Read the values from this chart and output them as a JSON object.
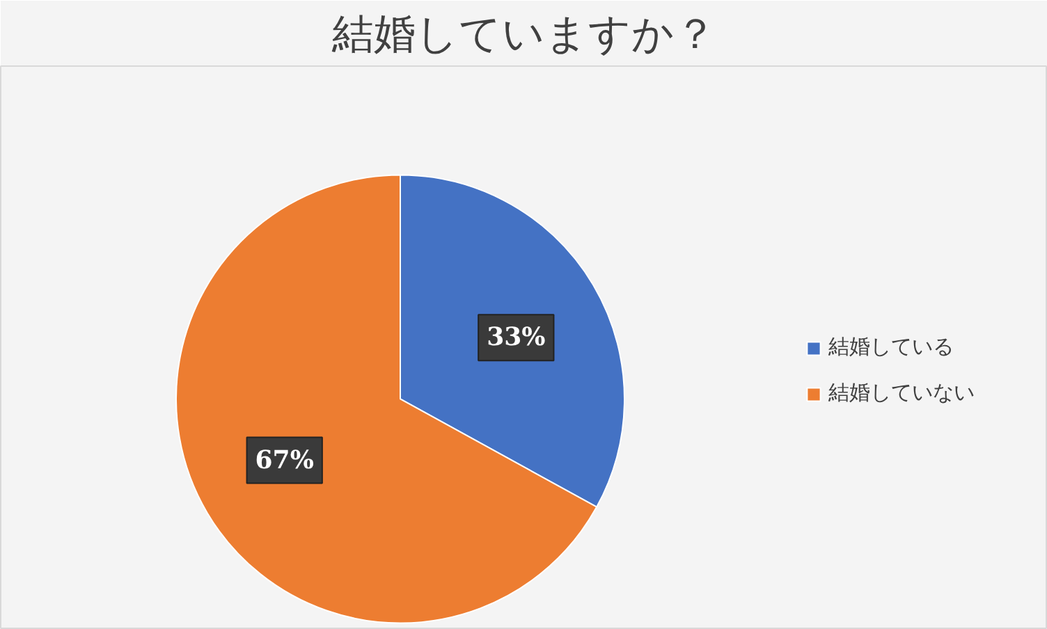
{
  "chart_data": {
    "type": "pie",
    "title": "結婚していますか？",
    "categories": [
      "結婚している",
      "結婚していない"
    ],
    "values": [
      33,
      67
    ],
    "colors": [
      "#4472c4",
      "#ed7d31"
    ],
    "value_labels": [
      "33%",
      "67%"
    ],
    "legend": "right"
  }
}
